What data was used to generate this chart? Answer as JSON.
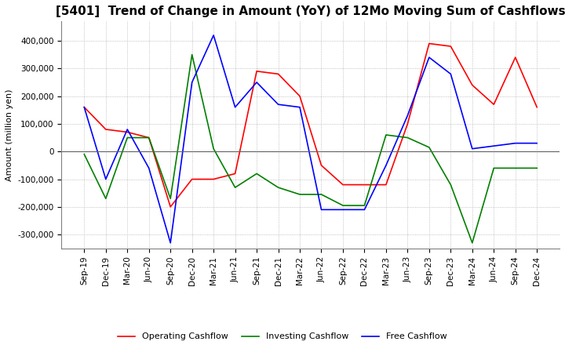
{
  "title": "[5401]  Trend of Change in Amount (YoY) of 12Mo Moving Sum of Cashflows",
  "ylabel": "Amount (million yen)",
  "ylim": [
    -350000,
    470000
  ],
  "yticks": [
    -300000,
    -200000,
    -100000,
    0,
    100000,
    200000,
    300000,
    400000
  ],
  "x_labels": [
    "Sep-19",
    "Dec-19",
    "Mar-20",
    "Jun-20",
    "Sep-20",
    "Dec-20",
    "Mar-21",
    "Jun-21",
    "Sep-21",
    "Dec-21",
    "Mar-22",
    "Jun-22",
    "Sep-22",
    "Dec-22",
    "Mar-23",
    "Jun-23",
    "Sep-23",
    "Dec-23",
    "Mar-24",
    "Jun-24",
    "Sep-24",
    "Dec-24"
  ],
  "operating": [
    160000,
    80000,
    70000,
    50000,
    -200000,
    -100000,
    -100000,
    -80000,
    290000,
    280000,
    200000,
    -50000,
    -120000,
    -120000,
    -120000,
    100000,
    390000,
    380000,
    240000,
    170000,
    340000,
    160000
  ],
  "investing": [
    -10000,
    -170000,
    50000,
    50000,
    -170000,
    350000,
    10000,
    -130000,
    -80000,
    -130000,
    -155000,
    -155000,
    -195000,
    -195000,
    60000,
    50000,
    15000,
    -120000,
    -330000,
    -60000,
    -60000,
    -60000
  ],
  "free": [
    160000,
    -100000,
    80000,
    -60000,
    -330000,
    250000,
    420000,
    160000,
    250000,
    170000,
    160000,
    -210000,
    -210000,
    -210000,
    -50000,
    130000,
    340000,
    280000,
    10000,
    20000,
    30000,
    30000
  ],
  "operating_color": "#ff0000",
  "investing_color": "#008000",
  "free_color": "#0000ff",
  "background_color": "#ffffff",
  "grid_color": "#b0b0b0",
  "title_fontsize": 11,
  "label_fontsize": 8,
  "tick_fontsize": 7.5
}
